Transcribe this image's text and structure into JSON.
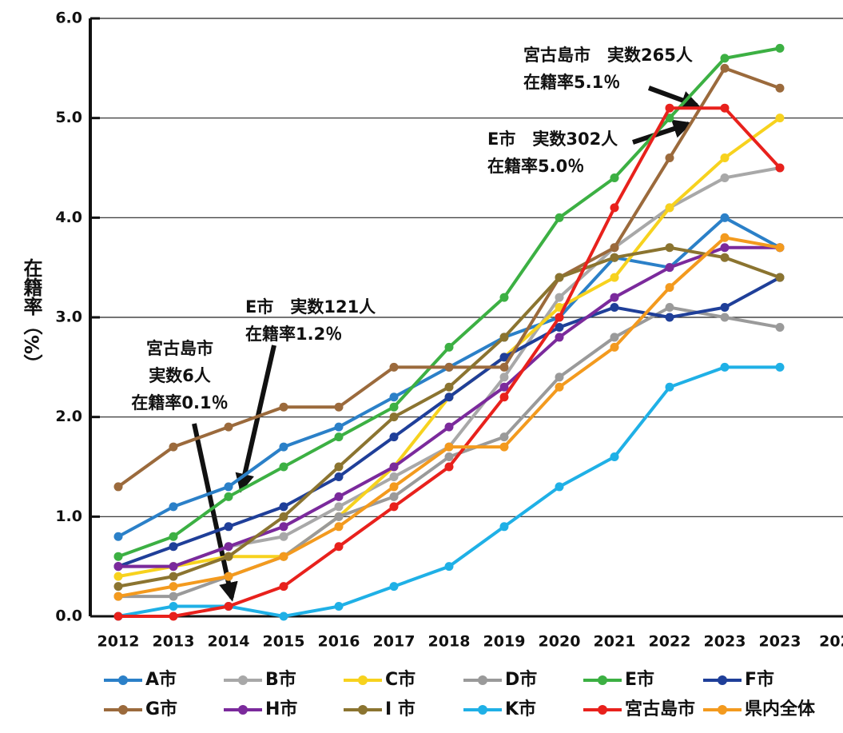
{
  "chart_data": {
    "type": "line",
    "ylabel": "在籍率（%）",
    "categories": [
      "2012",
      "2013",
      "2014",
      "2015",
      "2016",
      "2017",
      "2018",
      "2019",
      "2020",
      "2021",
      "2022",
      "2023",
      "2023",
      "202"
    ],
    "ylim": [
      0,
      6
    ],
    "yticks": [
      {
        "value": 0,
        "label": "0.0"
      },
      {
        "value": 1,
        "label": "1.0"
      },
      {
        "value": 2,
        "label": "2.0"
      },
      {
        "value": 3,
        "label": "3.0"
      },
      {
        "value": 4,
        "label": "4.0"
      },
      {
        "value": 5,
        "label": "5.0"
      },
      {
        "value": 6,
        "label": "6.0"
      }
    ],
    "grid": true,
    "series": [
      {
        "name": "A市",
        "color": "#2b80c8",
        "values": [
          0.8,
          1.1,
          1.3,
          1.7,
          1.9,
          2.2,
          2.5,
          2.8,
          3.0,
          3.6,
          3.5,
          4.0,
          3.7,
          null
        ]
      },
      {
        "name": "B市",
        "color": "#a8a8a8",
        "values": [
          0.5,
          0.5,
          0.7,
          0.8,
          1.1,
          1.4,
          1.7,
          2.4,
          3.2,
          3.7,
          4.1,
          4.4,
          4.5,
          null
        ]
      },
      {
        "name": "C市",
        "color": "#f7d21e",
        "values": [
          0.4,
          0.5,
          0.6,
          0.6,
          1.0,
          1.5,
          2.2,
          2.6,
          3.1,
          3.4,
          4.1,
          4.6,
          5.0,
          null
        ]
      },
      {
        "name": "D市",
        "color": "#9a9a9a",
        "values": [
          0.2,
          0.2,
          0.4,
          0.6,
          1.0,
          1.2,
          1.6,
          1.8,
          2.4,
          2.8,
          3.1,
          3.0,
          2.9,
          null
        ]
      },
      {
        "name": "E市",
        "color": "#3cb043",
        "values": [
          0.6,
          0.8,
          1.2,
          1.5,
          1.8,
          2.1,
          2.7,
          3.2,
          4.0,
          4.4,
          5.0,
          5.6,
          5.7,
          null
        ]
      },
      {
        "name": "F市",
        "color": "#1f3f99",
        "values": [
          0.5,
          0.7,
          0.9,
          1.1,
          1.4,
          1.8,
          2.2,
          2.6,
          2.9,
          3.1,
          3.0,
          3.1,
          3.4,
          null
        ]
      },
      {
        "name": "G市",
        "color": "#9b6a3c",
        "values": [
          1.3,
          1.7,
          1.9,
          2.1,
          2.1,
          2.5,
          2.5,
          2.5,
          3.4,
          3.7,
          4.6,
          5.5,
          5.3,
          null
        ]
      },
      {
        "name": "H市",
        "color": "#7b2a9c",
        "values": [
          0.5,
          0.5,
          0.7,
          0.9,
          1.2,
          1.5,
          1.9,
          2.3,
          2.8,
          3.2,
          3.5,
          3.7,
          3.7,
          null
        ]
      },
      {
        "name": "I 市",
        "color": "#8b7430",
        "values": [
          0.3,
          0.4,
          0.6,
          1.0,
          1.5,
          2.0,
          2.3,
          2.8,
          3.4,
          3.6,
          3.7,
          3.6,
          3.4,
          null
        ]
      },
      {
        "name": "K市",
        "color": "#1fb0e6",
        "values": [
          0,
          0.1,
          0.1,
          0,
          0.1,
          0.3,
          0.5,
          0.9,
          1.3,
          1.6,
          2.3,
          2.5,
          2.5,
          null
        ]
      },
      {
        "name": "宮古島市",
        "color": "#e8211c",
        "values": [
          0,
          0,
          0.1,
          0.3,
          0.7,
          1.1,
          1.5,
          2.2,
          3.0,
          4.1,
          5.1,
          5.1,
          4.5,
          null
        ]
      },
      {
        "name": "県内全体",
        "color": "#f39a1e",
        "values": [
          0.2,
          0.3,
          0.4,
          0.6,
          0.9,
          1.3,
          1.7,
          1.7,
          2.3,
          2.7,
          3.3,
          3.8,
          3.7,
          null
        ]
      }
    ],
    "annotations": [
      {
        "lines": [
          "宮古島市　実数265人",
          "在籍率5.1％"
        ]
      },
      {
        "lines": [
          "E市　実数302人",
          "在籍率5.0％"
        ]
      },
      {
        "lines": [
          "E市　実数121人",
          "在籍率1.2％"
        ]
      },
      {
        "lines": [
          "宮古島市",
          "実数6人",
          "在籍率0.1％"
        ]
      }
    ]
  }
}
